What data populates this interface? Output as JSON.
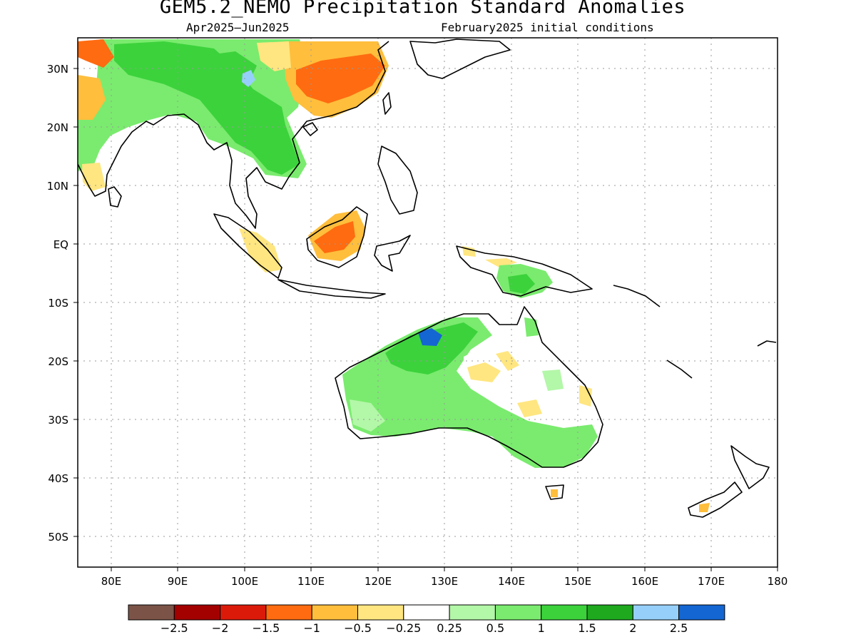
{
  "title": "GEM5.2_NEMO Precipitation Standard Anomalies",
  "period": "Apr2025—Jun2025",
  "initial_conditions": "February2025 initial conditions",
  "lat_labels": [
    "30N",
    "20N",
    "10N",
    "EQ",
    "10S",
    "20S",
    "30S",
    "40S",
    "50S"
  ],
  "lon_labels": [
    "80E",
    "90E",
    "100E",
    "110E",
    "120E",
    "130E",
    "140E",
    "150E",
    "160E",
    "170E",
    "180"
  ],
  "colorbar": {
    "colors": [
      "#7b5347",
      "#a30000",
      "#dc1a0a",
      "#ff6b10",
      "#ffbe3c",
      "#ffe680",
      "#ffffff",
      "#b3f7a8",
      "#7aeb6e",
      "#3cd23c",
      "#1ea91e",
      "#96d0fa",
      "#1466d2"
    ],
    "labels": [
      "−2.5",
      "−2",
      "−1.5",
      "−1",
      "−0.5",
      "−0.25",
      "0.25",
      "0.5",
      "1",
      "1.5",
      "2",
      "2.5"
    ]
  },
  "map_extent": {
    "lon_min": 75,
    "lon_max": 180,
    "lat_min": -55,
    "lat_max": 35
  }
}
